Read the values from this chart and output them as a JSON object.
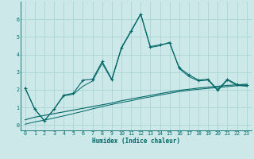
{
  "xlabel": "Humidex (Indice chaleur)",
  "background_color": "#cce8e8",
  "grid_color": "#aad4d4",
  "line_color": "#006666",
  "x_values": [
    0,
    1,
    2,
    3,
    4,
    5,
    6,
    7,
    8,
    9,
    10,
    11,
    12,
    13,
    14,
    15,
    16,
    17,
    18,
    19,
    20,
    21,
    22,
    23
  ],
  "line1_y": [
    2.1,
    0.9,
    0.25,
    0.9,
    1.7,
    1.8,
    2.55,
    2.6,
    3.6,
    2.6,
    4.4,
    5.35,
    6.3,
    4.45,
    4.55,
    4.65,
    3.25,
    2.85,
    2.55,
    2.6,
    2.0,
    2.6,
    2.3,
    2.25
  ],
  "line2_y": [
    2.1,
    0.9,
    0.25,
    0.9,
    1.65,
    1.75,
    2.2,
    2.5,
    3.5,
    2.55,
    4.35,
    5.3,
    6.28,
    4.4,
    4.5,
    4.7,
    3.2,
    2.75,
    2.5,
    2.55,
    1.95,
    2.55,
    2.25,
    2.2
  ],
  "line3_y": [
    0.3,
    0.45,
    0.55,
    0.65,
    0.75,
    0.85,
    0.95,
    1.05,
    1.15,
    1.25,
    1.38,
    1.48,
    1.58,
    1.68,
    1.78,
    1.88,
    1.97,
    2.03,
    2.1,
    2.15,
    2.2,
    2.25,
    2.28,
    2.32
  ],
  "line4_y": [
    0.05,
    0.18,
    0.28,
    0.4,
    0.52,
    0.65,
    0.78,
    0.92,
    1.05,
    1.17,
    1.28,
    1.38,
    1.5,
    1.6,
    1.7,
    1.8,
    1.9,
    1.97,
    2.03,
    2.08,
    2.13,
    2.18,
    2.23,
    2.27
  ],
  "ylim": [
    -0.3,
    7.0
  ],
  "xlim": [
    -0.5,
    23.5
  ],
  "yticks": [
    0,
    1,
    2,
    3,
    4,
    5,
    6
  ],
  "xticks": [
    0,
    1,
    2,
    3,
    4,
    5,
    6,
    7,
    8,
    9,
    10,
    11,
    12,
    13,
    14,
    15,
    16,
    17,
    18,
    19,
    20,
    21,
    22,
    23
  ]
}
